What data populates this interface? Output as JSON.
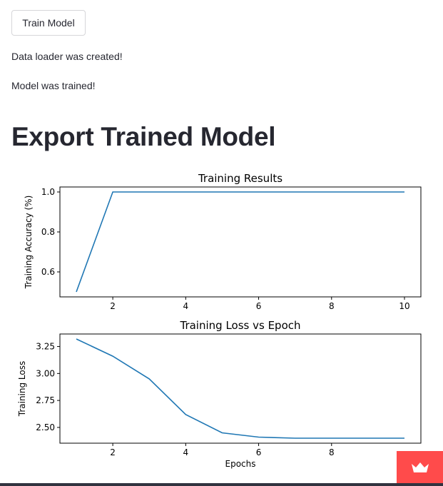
{
  "train_button": {
    "label": "Train Model"
  },
  "messages": {
    "data_loader": "Data loader was created!",
    "model_trained": "Model was trained!"
  },
  "export_section": {
    "title": "Export Trained Model"
  },
  "accent_color": "#ff4b4b",
  "line_color": "#1f77b4",
  "badge_icon": "crown-icon",
  "chart_data": [
    {
      "type": "line",
      "title": "Training Results",
      "xlabel": "",
      "ylabel": "Training Accuracy (%)",
      "x": [
        1,
        2,
        3,
        4,
        5,
        6,
        7,
        8,
        9,
        10
      ],
      "y": [
        0.5,
        1.0,
        1.0,
        1.0,
        1.0,
        1.0,
        1.0,
        1.0,
        1.0,
        1.0
      ],
      "xticks": [
        2,
        4,
        6,
        8,
        10
      ],
      "yticks": [
        0.6,
        0.8,
        1.0
      ],
      "ytick_labels": [
        "0.6",
        "0.8",
        "1.0"
      ],
      "xlim": [
        0.55,
        10.45
      ],
      "ylim": [
        0.475,
        1.025
      ],
      "grid": false
    },
    {
      "type": "line",
      "title": "Training Loss vs Epoch",
      "xlabel": "Epochs",
      "ylabel": "Training Loss",
      "x": [
        1,
        2,
        3,
        4,
        5,
        6,
        7,
        8,
        9,
        10
      ],
      "y": [
        3.32,
        3.16,
        2.95,
        2.62,
        2.45,
        2.41,
        2.4,
        2.4,
        2.4,
        2.4
      ],
      "xticks": [
        2,
        4,
        6,
        8
      ],
      "yticks": [
        2.5,
        2.75,
        3.0,
        3.25
      ],
      "ytick_labels": [
        "2.50",
        "2.75",
        "3.00",
        "3.25"
      ],
      "xlim": [
        0.55,
        10.45
      ],
      "ylim": [
        2.354,
        3.366
      ],
      "grid": false
    }
  ]
}
